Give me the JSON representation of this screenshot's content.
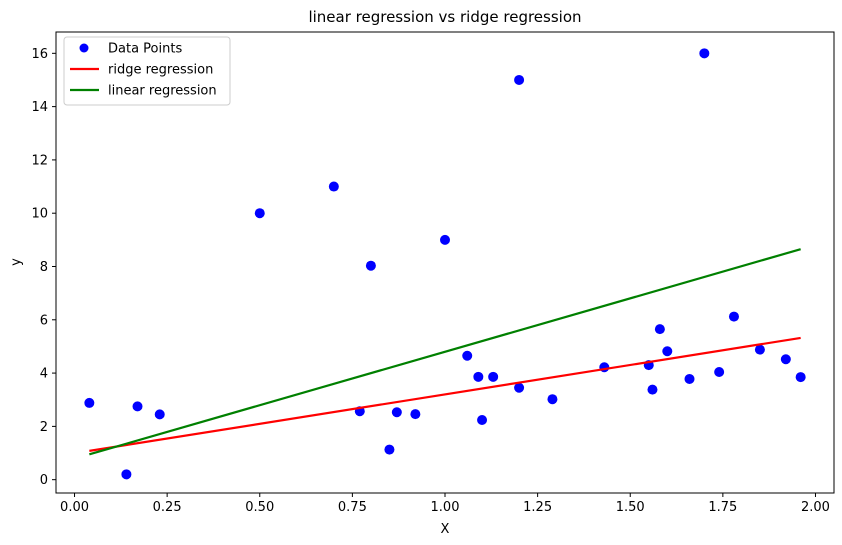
{
  "chart_data": {
    "type": "scatter",
    "title": "linear regression vs ridge regression",
    "xlabel": "X",
    "ylabel": "y",
    "xlim": [
      -0.05,
      2.05
    ],
    "ylim": [
      -0.5,
      16.8
    ],
    "xticks": [
      0.0,
      0.25,
      0.5,
      0.75,
      1.0,
      1.25,
      1.5,
      1.75,
      2.0
    ],
    "xtick_labels": [
      "0.00",
      "0.25",
      "0.50",
      "0.75",
      "1.00",
      "1.25",
      "1.50",
      "1.75",
      "2.00"
    ],
    "yticks": [
      0,
      2,
      4,
      6,
      8,
      10,
      12,
      14,
      16
    ],
    "ytick_labels": [
      "0",
      "2",
      "4",
      "6",
      "8",
      "10",
      "12",
      "14",
      "16"
    ],
    "grid": false,
    "legend_position": "top-left",
    "series": [
      {
        "name": "Data Points",
        "kind": "scatter",
        "color": "#0000ff",
        "points": [
          [
            0.04,
            2.88
          ],
          [
            0.14,
            0.2
          ],
          [
            0.17,
            2.75
          ],
          [
            0.23,
            2.45
          ],
          [
            0.5,
            10.0
          ],
          [
            0.7,
            11.0
          ],
          [
            0.77,
            2.57
          ],
          [
            0.8,
            8.03
          ],
          [
            0.85,
            1.13
          ],
          [
            0.87,
            2.53
          ],
          [
            0.92,
            2.46
          ],
          [
            1.0,
            9.0
          ],
          [
            1.06,
            4.65
          ],
          [
            1.09,
            3.86
          ],
          [
            1.1,
            2.24
          ],
          [
            1.13,
            3.86
          ],
          [
            1.2,
            15.0
          ],
          [
            1.2,
            3.45
          ],
          [
            1.29,
            3.02
          ],
          [
            1.43,
            4.22
          ],
          [
            1.55,
            4.3
          ],
          [
            1.56,
            3.38
          ],
          [
            1.58,
            5.65
          ],
          [
            1.6,
            4.82
          ],
          [
            1.66,
            3.78
          ],
          [
            1.7,
            16.0
          ],
          [
            1.74,
            4.04
          ],
          [
            1.78,
            6.12
          ],
          [
            1.85,
            4.88
          ],
          [
            1.92,
            4.52
          ],
          [
            1.96,
            3.85
          ]
        ]
      },
      {
        "name": "ridge regression",
        "kind": "line",
        "color": "#ff0000",
        "x": [
          0.04,
          1.96
        ],
        "y": [
          1.08,
          5.32
        ]
      },
      {
        "name": "linear regression",
        "kind": "line",
        "color": "#008000",
        "x": [
          0.04,
          1.96
        ],
        "y": [
          0.95,
          8.65
        ]
      }
    ]
  }
}
